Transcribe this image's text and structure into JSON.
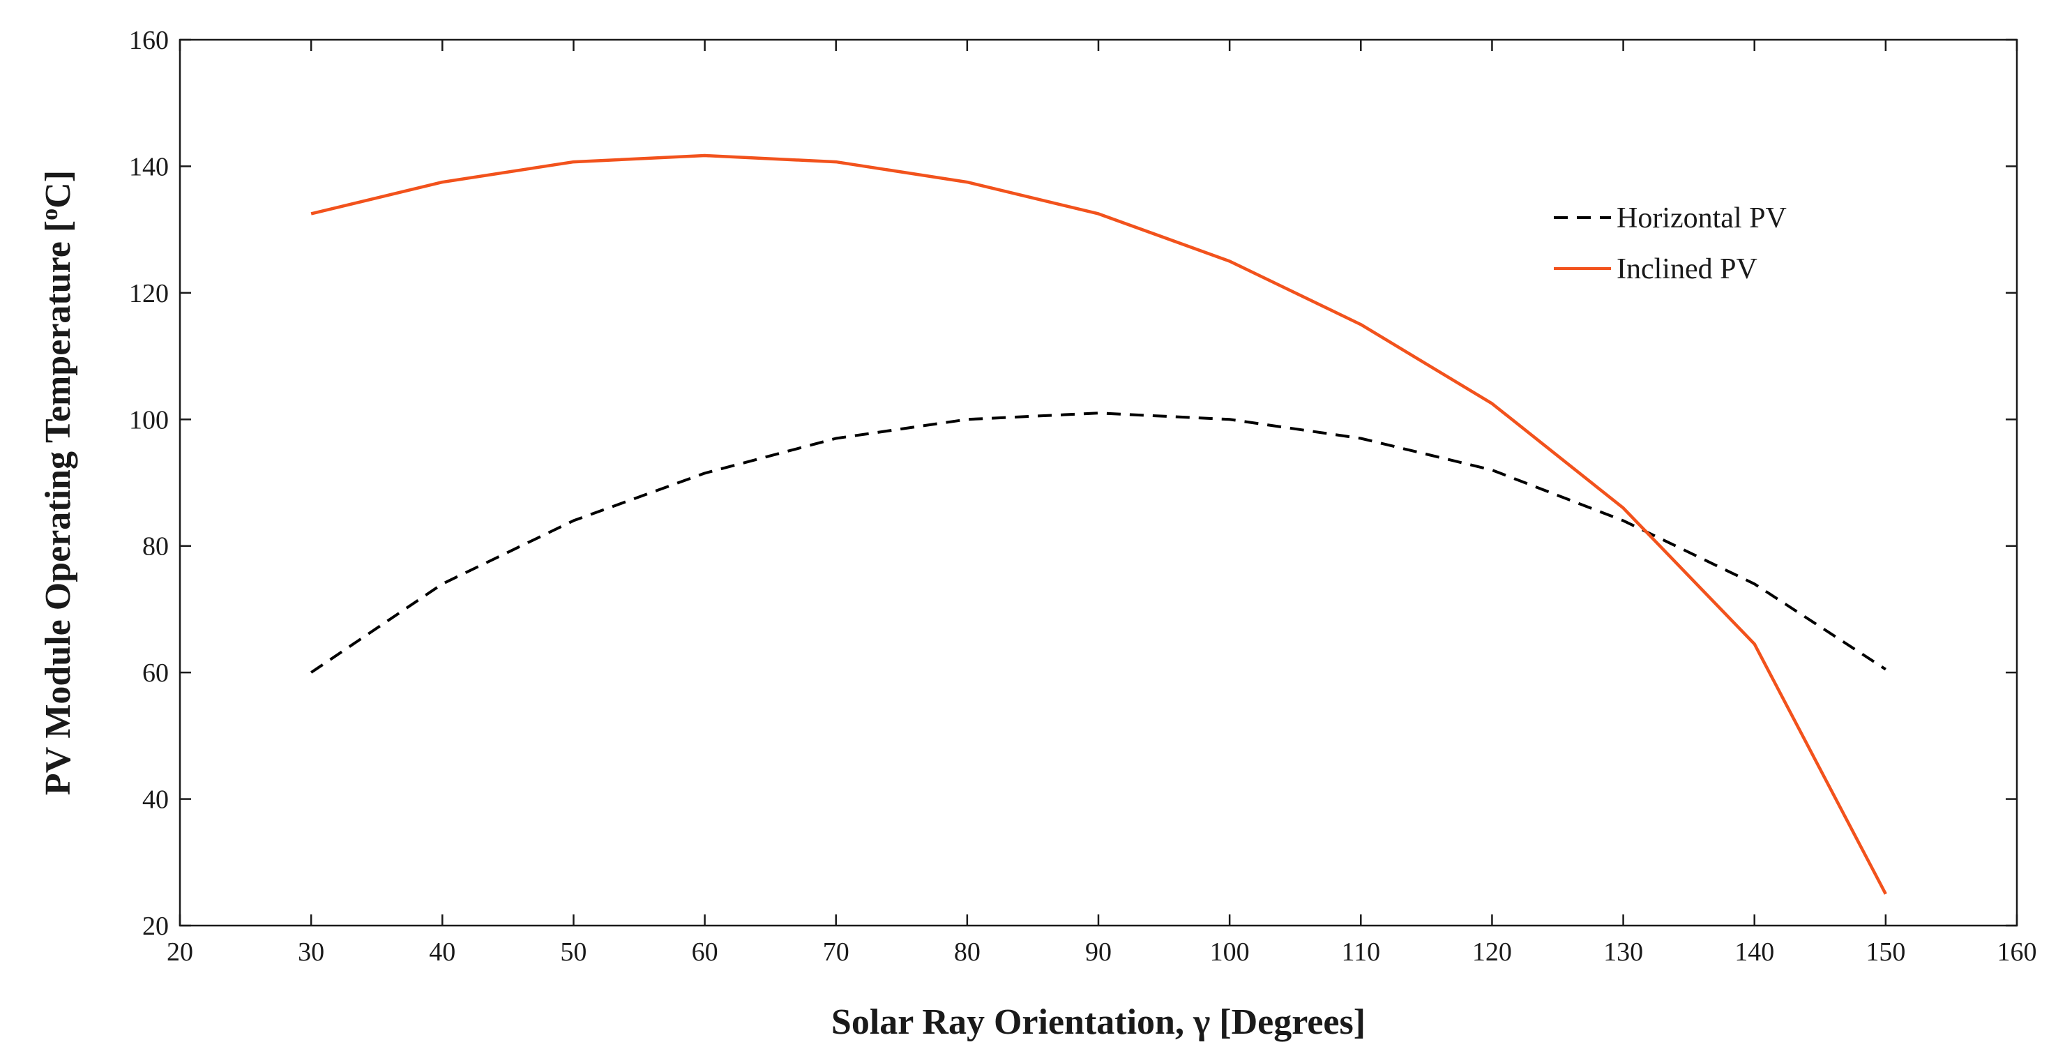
{
  "chart_data": {
    "type": "line",
    "title": "",
    "xlabel": "Solar Ray Orientation, γ [Degrees]",
    "ylabel_main": "PV Module Operating Temperature [",
    "ylabel_sup": "o",
    "ylabel_end": "C]",
    "xlim": [
      20,
      160
    ],
    "ylim": [
      20,
      160
    ],
    "xticks": [
      20,
      30,
      40,
      50,
      60,
      70,
      80,
      90,
      100,
      110,
      120,
      130,
      140,
      150,
      160
    ],
    "yticks": [
      20,
      40,
      60,
      80,
      100,
      120,
      140,
      160
    ],
    "grid": false,
    "legend_position": "top-right",
    "x": [
      30,
      40,
      50,
      60,
      70,
      80,
      90,
      100,
      110,
      120,
      130,
      140,
      150
    ],
    "series": [
      {
        "name": "Horizontal PV",
        "color": "#000000",
        "dash": "dashed",
        "values": [
          60,
          74,
          84,
          91.5,
          97,
          100,
          101,
          100,
          97,
          92,
          84,
          74,
          60.5
        ]
      },
      {
        "name": "Inclined PV",
        "color": "#f2521c",
        "dash": "solid",
        "values": [
          132.5,
          137.5,
          140.7,
          141.7,
          140.7,
          137.5,
          132.5,
          125,
          115,
          102.5,
          86,
          64.5,
          25
        ]
      }
    ]
  }
}
